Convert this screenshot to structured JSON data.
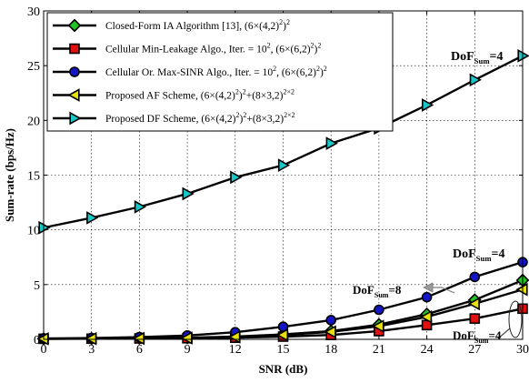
{
  "chart_data": {
    "type": "line",
    "xlabel": "SNR (dB)",
    "ylabel": "Sum-rate (bps/Hz)",
    "x": [
      0,
      3,
      6,
      9,
      12,
      15,
      18,
      21,
      24,
      27,
      30
    ],
    "xlim": [
      0,
      30
    ],
    "ylim": [
      0,
      30
    ],
    "xticks": [
      0,
      3,
      6,
      9,
      12,
      15,
      18,
      21,
      24,
      27,
      30
    ],
    "yticks": [
      0,
      5,
      10,
      15,
      20,
      25,
      30
    ],
    "grid": true,
    "legend_position": "top-left",
    "series": [
      {
        "legend": {
          "main": "Closed-Form IA Algorithm [13], (6×(4,2)",
          "sup1": "2",
          "mid": ")",
          "sup2": "2",
          "tail": ""
        },
        "marker": "diamond",
        "color": "#22c322",
        "values": [
          0.05,
          0.07,
          0.1,
          0.15,
          0.25,
          0.45,
          0.75,
          1.35,
          2.3,
          3.6,
          5.4
        ]
      },
      {
        "legend": {
          "main": "Cellular Min-Leakage Algo., Iter. = 10",
          "sup1": "2",
          "mid": ", (6×(6,2)",
          "sup2": "2",
          "tail": ")",
          "sup3": "2"
        },
        "marker": "square",
        "color": "#e01010",
        "values": [
          0.05,
          0.06,
          0.08,
          0.1,
          0.15,
          0.25,
          0.4,
          0.75,
          1.3,
          1.9,
          2.8
        ]
      },
      {
        "legend": {
          "main": "Cellular Or. Max-SINR Algo., Iter. = 10",
          "sup1": "2",
          "mid": ", (6×(6,2)",
          "sup2": "2",
          "tail": ")",
          "sup3": "2"
        },
        "marker": "circle",
        "color": "#1515c8",
        "values": [
          0.08,
          0.12,
          0.2,
          0.35,
          0.65,
          1.15,
          1.75,
          2.7,
          3.85,
          5.7,
          7.05
        ]
      },
      {
        "legend": {
          "main": "Proposed AF Scheme, (6×(4,2)",
          "sup1": "2",
          "mid": ")",
          "sup2": "2",
          "tail": "+(8×3,2)",
          "sup3": "2×2"
        },
        "marker": "triangle-left",
        "color": "#e8e010",
        "values": [
          0.05,
          0.06,
          0.08,
          0.12,
          0.22,
          0.4,
          0.68,
          1.2,
          2.05,
          3.25,
          4.55
        ]
      },
      {
        "legend": {
          "main": "Proposed DF Scheme, (6×(4,2)",
          "sup1": "2",
          "mid": ")",
          "sup2": "2",
          "tail": "+(8×3,2)",
          "sup3": "2×2"
        },
        "marker": "triangle-right",
        "color": "#18c8c8",
        "values": [
          10.2,
          11.1,
          12.1,
          13.3,
          14.8,
          15.9,
          17.9,
          19.3,
          21.4,
          23.7,
          25.9
        ]
      }
    ],
    "annotations": [
      {
        "text": "DoF",
        "sub": "Sum",
        "tail": "=4",
        "target": "DF",
        "color": "#000000"
      },
      {
        "text": "DoF",
        "sub": "Sum",
        "tail": "=4",
        "target": "Max-SINR",
        "color": "#000000"
      },
      {
        "text": "DoF",
        "sub": "Sum",
        "tail": "=8",
        "target": "AF/IA",
        "color": "#000000"
      },
      {
        "text": "DoF",
        "sub": "Sum",
        "tail": "=4",
        "target": "Min-Leakage",
        "color": "#777777"
      }
    ]
  }
}
